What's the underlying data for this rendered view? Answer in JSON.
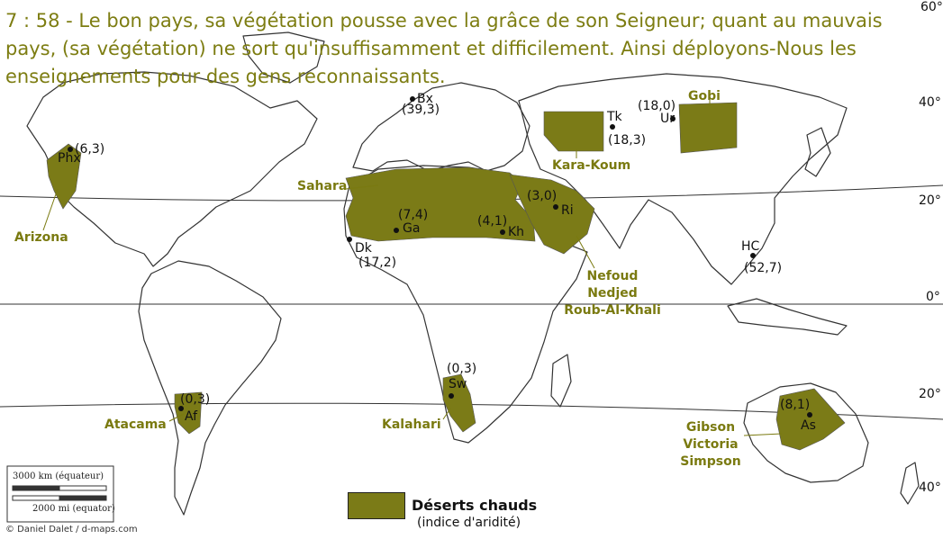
{
  "verse": "7 : 58 - Le bon pays, sa végétation pousse avec la grâce de son Seigneur; quant au mauvais pays, (sa végétation) ne sort qu'insuffisamment et difficilement. Ainsi déployons-Nous les enseignements pour des gens reconnaissants.",
  "colors": {
    "desert": "#7b7b17",
    "label": "#7a7a10",
    "land_outline": "#333333",
    "grid": "#333333"
  },
  "latitudes": [
    "60°",
    "40°",
    "20°",
    "0°",
    "20°",
    "40°"
  ],
  "regions": {
    "arizona": "Arizona",
    "sahara": "Sahara",
    "kara_koum": "Kara-Koum",
    "gobi": "Gobi",
    "arabia": [
      "Nefoud",
      "Nedjed",
      "Roub-Al-Khali"
    ],
    "atacama": "Atacama",
    "kalahari": "Kalahari",
    "australia": [
      "Gibson",
      "Victoria",
      "Simpson"
    ]
  },
  "stations": {
    "phx": {
      "code": "Phx",
      "index": "(6,3)"
    },
    "bx": {
      "code": "Bx",
      "index": "(39,3)"
    },
    "tk": {
      "code": "Tk",
      "index": "(18,3)"
    },
    "ur": {
      "code": "Ur",
      "index": "(18,0)"
    },
    "ri": {
      "code": "Ri",
      "index": "(3,0)"
    },
    "ga": {
      "code": "Ga",
      "index": "(7,4)"
    },
    "kh": {
      "code": "Kh",
      "index": "(4,1)"
    },
    "dk": {
      "code": "Dk",
      "index": "(17,2)"
    },
    "hc": {
      "code": "HC",
      "index": "(52,7)"
    },
    "af": {
      "code": "Af",
      "index": "(0,3)"
    },
    "sw": {
      "code": "Sw",
      "index": "(0,3)"
    },
    "as": {
      "code": "As",
      "index": "(8,1)"
    }
  },
  "legend": {
    "title": "Déserts chauds",
    "subtitle": "(indice d'aridité)"
  },
  "scale": {
    "km": "3000 km (équateur)",
    "mi": "2000 mi (equator)"
  },
  "credit": "© Daniel Dalet / d-maps.com"
}
